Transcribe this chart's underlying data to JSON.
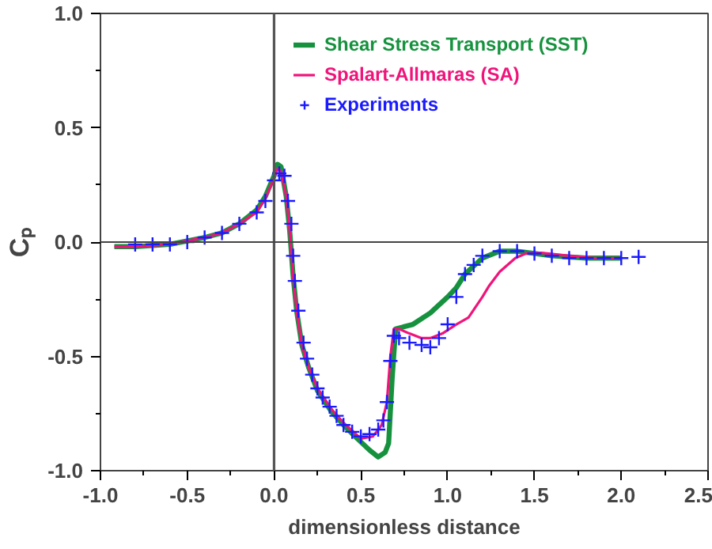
{
  "chart_data": {
    "type": "line",
    "xlabel": "dimensionless distance",
    "ylabel": "Cₚ",
    "xlim": [
      -1.0,
      2.5
    ],
    "ylim": [
      -1.0,
      1.0
    ],
    "xticks": [
      {
        "value": -1,
        "label": "-1.0"
      },
      {
        "value": -0.75,
        "label": null
      },
      -0.5,
      {
        "value": -0.25,
        "label": null
      },
      {
        "value": 0,
        "label": "0.0"
      },
      {
        "value": 0.25,
        "label": null
      },
      0.5,
      {
        "value": 0.75,
        "label": null
      },
      {
        "value": 1,
        "label": "1.0"
      },
      {
        "value": 1.25,
        "label": null
      },
      1.5,
      {
        "value": 1.75,
        "label": null
      },
      {
        "value": 2,
        "label": "2.0"
      },
      {
        "value": 2.25,
        "label": null
      },
      2.5
    ],
    "yticks": [
      {
        "value": -1,
        "label": "-1.0"
      },
      {
        "value": -0.75,
        "label": null
      },
      -0.5,
      {
        "value": -0.25,
        "label": null
      },
      {
        "value": 0,
        "label": "0.0"
      },
      {
        "value": 0.25,
        "label": null
      },
      0.5,
      {
        "value": 0.75,
        "label": null
      },
      {
        "value": 1,
        "label": "1.0"
      }
    ],
    "grid": false,
    "legend": "top right",
    "line_style": "solid",
    "ref_lines": [
      {
        "axis": "x",
        "value": 0.0,
        "color": "#555555"
      },
      {
        "axis": "y",
        "value": 0.0,
        "color": "#444444"
      }
    ],
    "series": [
      {
        "name": "Shear Stress Transport (SST)",
        "color": "#16923e",
        "marker": "none",
        "x": [
          -0.92,
          -0.8,
          -0.6,
          -0.4,
          -0.3,
          -0.2,
          -0.1,
          -0.05,
          0.0,
          0.02,
          0.04,
          0.07,
          0.09,
          0.11,
          0.13,
          0.16,
          0.2,
          0.25,
          0.33,
          0.4,
          0.48,
          0.55,
          0.6,
          0.64,
          0.66,
          0.68,
          0.7,
          0.75,
          0.8,
          0.9,
          1.0,
          1.05,
          1.1,
          1.2,
          1.3,
          1.4,
          1.5,
          1.6,
          1.8,
          2.0
        ],
        "values": [
          -0.02,
          -0.02,
          -0.01,
          0.02,
          0.04,
          0.08,
          0.14,
          0.2,
          0.29,
          0.34,
          0.33,
          0.2,
          0.05,
          -0.15,
          -0.3,
          -0.45,
          -0.55,
          -0.65,
          -0.74,
          -0.8,
          -0.86,
          -0.91,
          -0.94,
          -0.92,
          -0.88,
          -0.6,
          -0.38,
          -0.37,
          -0.36,
          -0.31,
          -0.24,
          -0.2,
          -0.14,
          -0.07,
          -0.04,
          -0.04,
          -0.05,
          -0.06,
          -0.07,
          -0.07
        ]
      },
      {
        "name": "Spalart-Allmaras (SA)",
        "color": "#f0147a",
        "marker": "none",
        "x": [
          -0.92,
          -0.8,
          -0.6,
          -0.4,
          -0.3,
          -0.2,
          -0.1,
          -0.05,
          0.0,
          0.02,
          0.04,
          0.07,
          0.09,
          0.11,
          0.13,
          0.16,
          0.2,
          0.25,
          0.33,
          0.4,
          0.5,
          0.57,
          0.62,
          0.65,
          0.67,
          0.69,
          0.72,
          0.78,
          0.85,
          0.9,
          0.97,
          1.05,
          1.12,
          1.2,
          1.24,
          1.3,
          1.39,
          1.45,
          1.54,
          1.7,
          1.85,
          2.0
        ],
        "values": [
          -0.02,
          -0.02,
          -0.01,
          0.02,
          0.04,
          0.08,
          0.13,
          0.19,
          0.28,
          0.32,
          0.31,
          0.2,
          0.05,
          -0.15,
          -0.3,
          -0.45,
          -0.55,
          -0.64,
          -0.73,
          -0.79,
          -0.86,
          -0.85,
          -0.8,
          -0.7,
          -0.5,
          -0.38,
          -0.38,
          -0.4,
          -0.42,
          -0.42,
          -0.4,
          -0.36,
          -0.33,
          -0.24,
          -0.19,
          -0.13,
          -0.07,
          -0.05,
          -0.047,
          -0.06,
          -0.07,
          -0.07
        ]
      },
      {
        "name": "Experiments",
        "color": "#1a1aff",
        "type": "scatter",
        "marker": "cross",
        "x": [
          -0.8,
          -0.7,
          -0.6,
          -0.5,
          -0.4,
          -0.3,
          -0.2,
          -0.1,
          -0.05,
          0.0,
          0.03,
          0.06,
          0.08,
          0.1,
          0.11,
          0.12,
          0.14,
          0.17,
          0.19,
          0.22,
          0.25,
          0.28,
          0.32,
          0.36,
          0.4,
          0.45,
          0.5,
          0.55,
          0.6,
          0.63,
          0.65,
          0.67,
          0.69,
          0.72,
          0.78,
          0.85,
          0.9,
          0.95,
          1.0,
          1.05,
          1.1,
          1.15,
          1.2,
          1.3,
          1.4,
          1.5,
          1.6,
          1.7,
          1.8,
          1.9,
          2.0,
          2.1
        ],
        "values": [
          -0.01,
          -0.01,
          -0.01,
          0.0,
          0.02,
          0.04,
          0.08,
          0.13,
          0.18,
          0.27,
          0.3,
          0.29,
          0.18,
          0.08,
          -0.06,
          -0.17,
          -0.3,
          -0.44,
          -0.51,
          -0.58,
          -0.64,
          -0.68,
          -0.72,
          -0.76,
          -0.8,
          -0.83,
          -0.85,
          -0.84,
          -0.82,
          -0.78,
          -0.7,
          -0.52,
          -0.41,
          -0.42,
          -0.44,
          -0.45,
          -0.46,
          -0.42,
          -0.36,
          -0.24,
          -0.14,
          -0.1,
          -0.06,
          -0.04,
          -0.04,
          -0.05,
          -0.06,
          -0.07,
          -0.07,
          -0.07,
          -0.07,
          -0.065
        ]
      }
    ]
  }
}
